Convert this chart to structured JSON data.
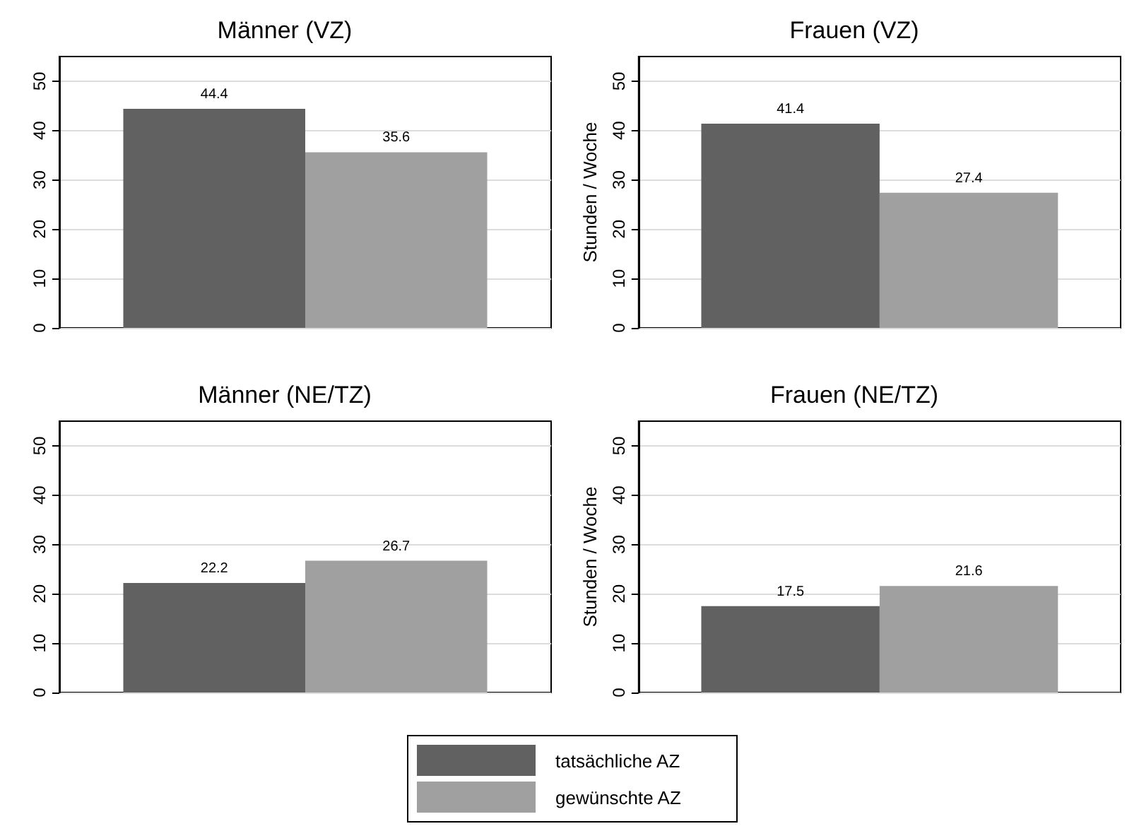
{
  "chart_data": [
    {
      "type": "bar",
      "title": "Männer (VZ)",
      "categories": [
        null
      ],
      "series": [
        {
          "name": "tatsächliche AZ",
          "color": "#616161",
          "values": [
            44.4
          ]
        },
        {
          "name": "gewünschte AZ",
          "color": "#a0a0a0",
          "values": [
            35.6
          ]
        }
      ],
      "ylim": [
        0,
        55
      ],
      "yticks": [
        0,
        10,
        20,
        30,
        40,
        50
      ],
      "grid": "y",
      "data_labels": true,
      "legend": "bottom"
    },
    {
      "type": "bar",
      "title": "Frauen (VZ)",
      "ylabel": "Stunden / Woche",
      "categories": [
        null
      ],
      "series": [
        {
          "color": "#616161",
          "values": [
            41.4
          ]
        },
        {
          "color": "#a0a0a0",
          "values": [
            27.4
          ]
        }
      ],
      "ylim": [
        0,
        55
      ],
      "yticks": [
        0,
        10,
        20,
        30,
        40,
        50
      ],
      "grid": "y",
      "data_labels": true
    },
    {
      "type": "bar",
      "title": "Männer (NE/TZ)",
      "categories": [
        null
      ],
      "series": [
        {
          "color": "#616161",
          "values": [
            22.2
          ]
        },
        {
          "color": "#a0a0a0",
          "values": [
            26.7
          ]
        }
      ],
      "ylim": [
        0,
        55
      ],
      "yticks": [
        0,
        10,
        20,
        30,
        40,
        50
      ],
      "grid": "y",
      "data_labels": true
    },
    {
      "type": "bar",
      "title": "Frauen (NE/TZ)",
      "ylabel": "Stunden / Woche",
      "categories": [
        null
      ],
      "series": [
        {
          "color": "#616161",
          "values": [
            17.5
          ]
        },
        {
          "color": "#a0a0a0",
          "values": [
            21.6
          ]
        }
      ],
      "ylim": [
        0,
        55
      ],
      "yticks": [
        0,
        10,
        20,
        30,
        40,
        50
      ],
      "grid": "y",
      "data_labels": true
    }
  ]
}
